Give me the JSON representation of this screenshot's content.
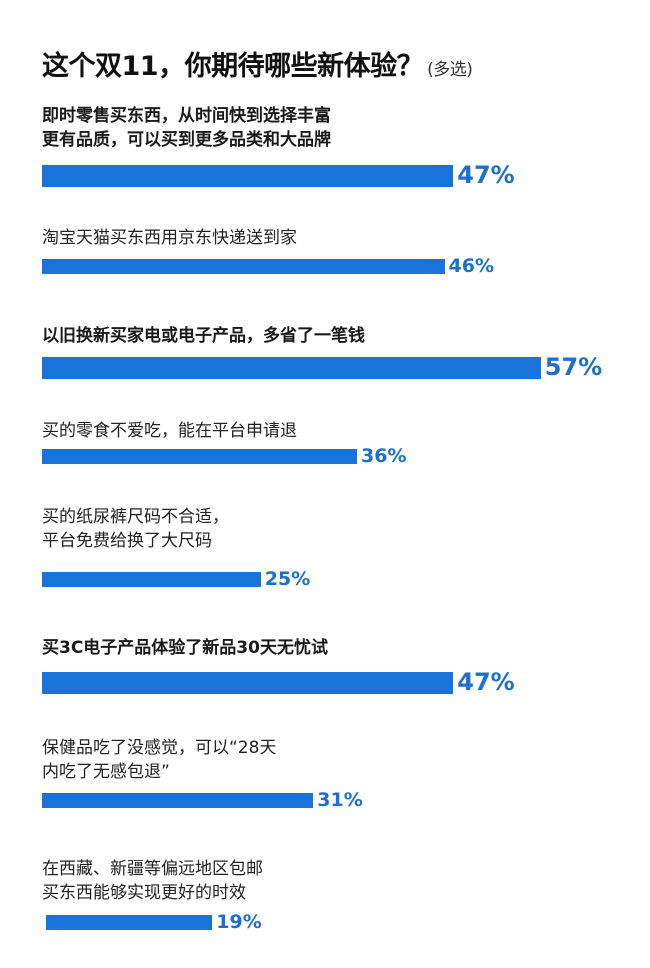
{
  "title": "这个双11，你期待哪些新体验？",
  "subtitle": "(多选)",
  "colors": {
    "bar": "#1a73d9",
    "value_text": "#1a6fcf"
  },
  "chart_data": {
    "type": "bar",
    "orientation": "horizontal",
    "title": "这个双11，你期待哪些新体验？",
    "subtitle": "(多选)",
    "categories": [
      "即时零售买东西，从时间快到选择丰富\n更有品质，可以买到更多品类和大品牌",
      "淘宝天猫买东西用京东快递送到家",
      "以旧换新买家电或电子产品，多省了一笔钱",
      "买的零食不爱吃，能在平台申请退",
      "买的纸尿裤尺码不合适，\n平台免费给换了大尺码",
      "买3C电子产品体验了新品30天无忧试",
      "保健品吃了没感觉，可以“28天\n内吃了无感包退”",
      "在西藏、新疆等偏远地区包邮\n买东西能够实现更好的时效"
    ],
    "values": [
      47,
      46,
      57,
      36,
      25,
      47,
      31,
      19
    ],
    "value_labels": [
      "47%",
      "46%",
      "57%",
      "36%",
      "25%",
      "47%",
      "31%",
      "19%"
    ],
    "emphasized": [
      true,
      false,
      true,
      false,
      false,
      true,
      false,
      false
    ],
    "unit": "%",
    "grid": false
  }
}
